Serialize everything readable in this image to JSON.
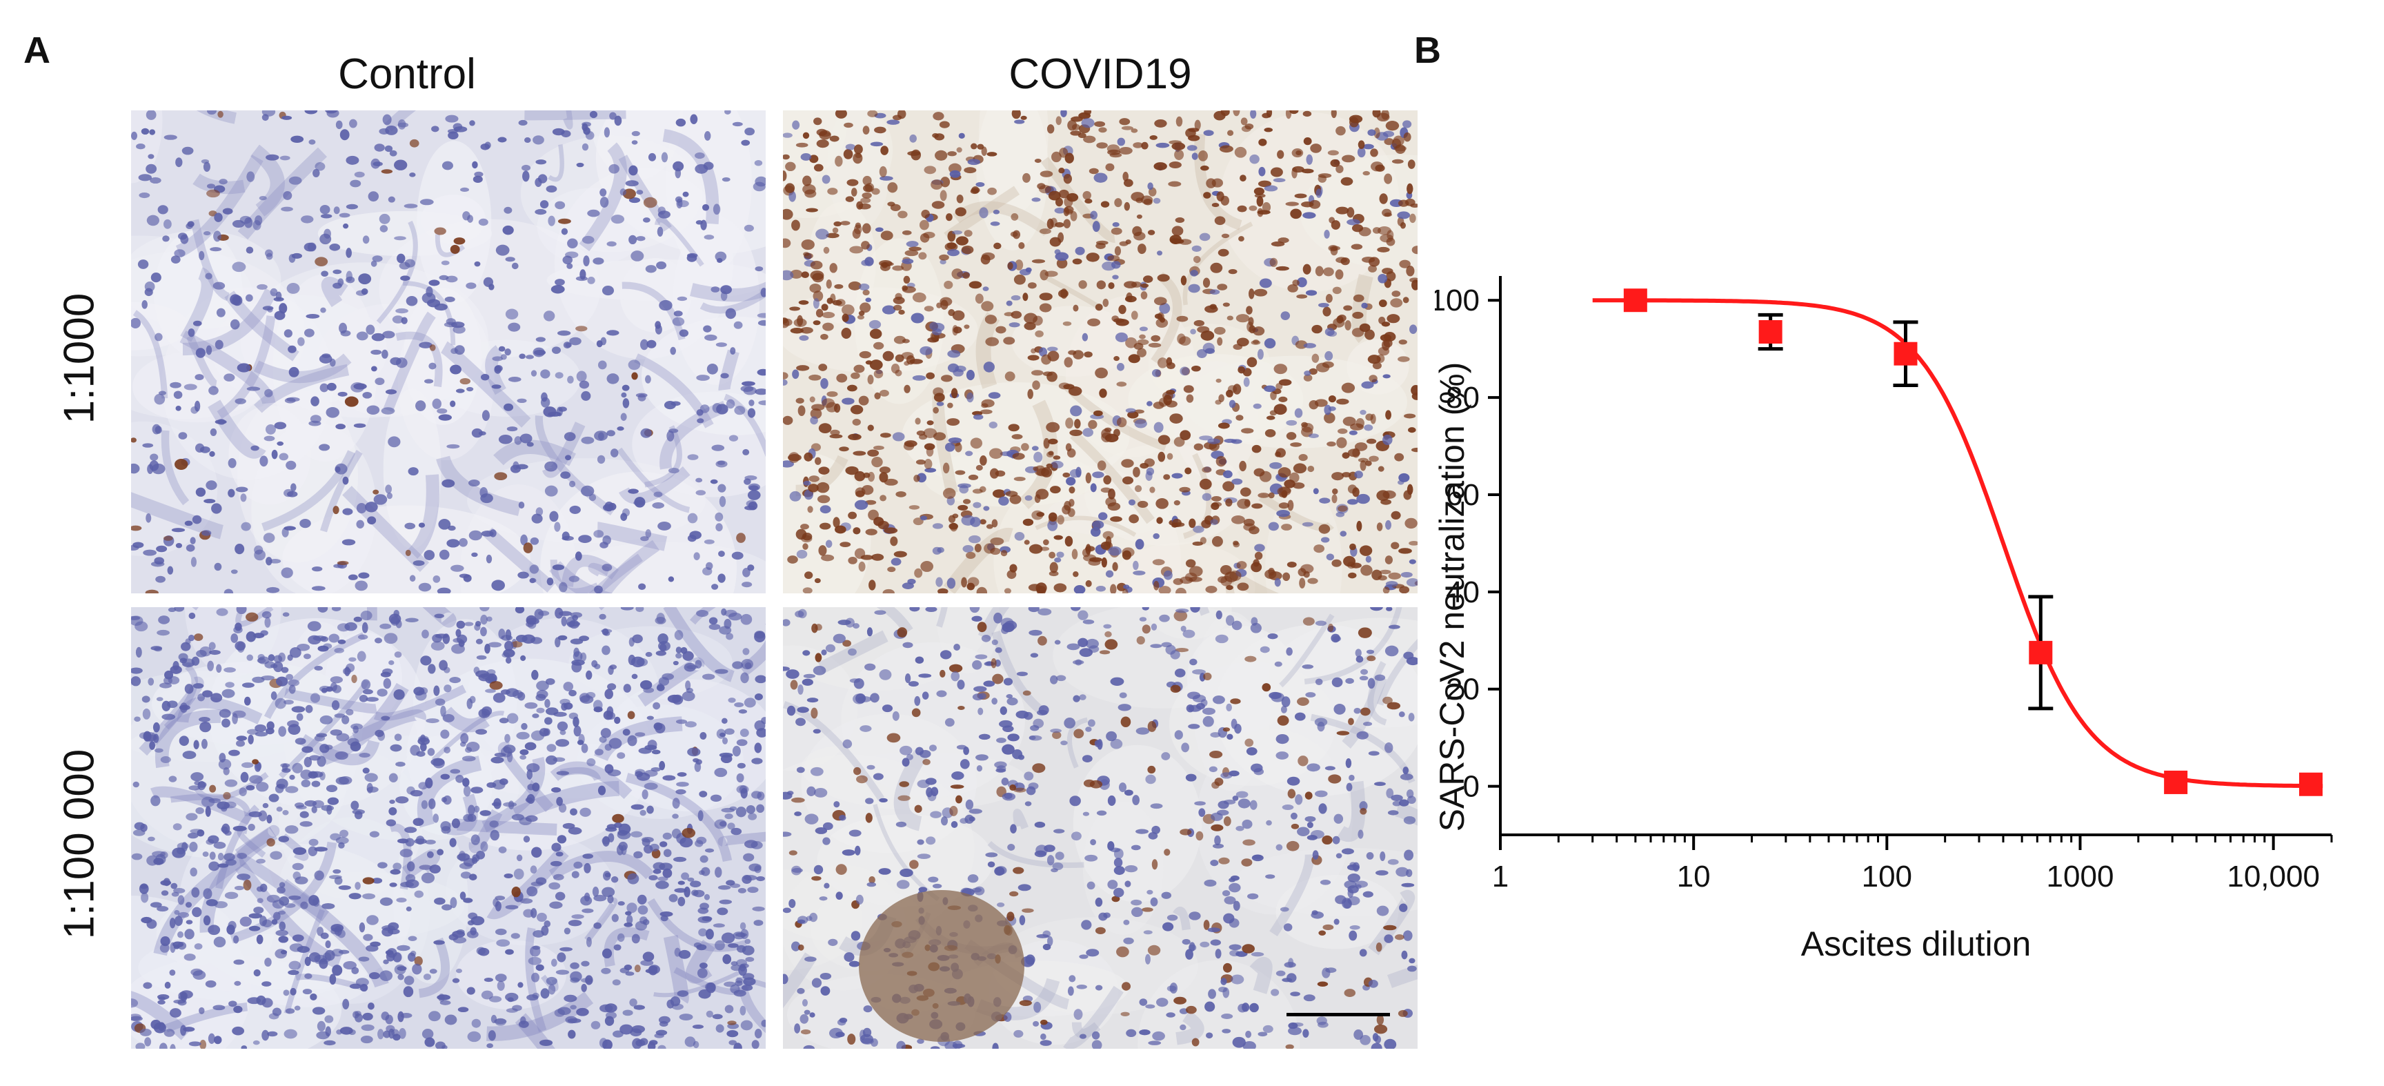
{
  "figure": {
    "panel_a": {
      "letter": "A",
      "columns": [
        "Control",
        "COVID19"
      ],
      "rows": [
        "1:1000",
        "1:100 000"
      ]
    },
    "panel_b": {
      "letter": "B"
    }
  },
  "colors": {
    "tissue_bg": "#e9ebf2",
    "hematoxylin": "#5a5fa8",
    "dab_brown": "#7a3a1c",
    "curve": "#ff1a1a",
    "marker": "#ff1a1a",
    "errorbar": "#000000"
  },
  "chart_data": {
    "type": "scatter",
    "xlabel": "Ascites dilution",
    "ylabel": "SARS-CoV2 neutralization (%)",
    "x_scale": "log",
    "xlim": [
      1,
      20000
    ],
    "ylim": [
      -10,
      105
    ],
    "x_ticks": [
      1,
      10,
      100,
      1000,
      10000
    ],
    "x_tick_labels": [
      "1",
      "10",
      "100",
      "1000",
      "10,000"
    ],
    "y_ticks": [
      0,
      20,
      40,
      60,
      80,
      100
    ],
    "y_tick_labels": [
      "0",
      "20",
      "40",
      "60",
      "80",
      "100"
    ],
    "series": [
      {
        "x": [
          5,
          25,
          125,
          625,
          3125,
          15625
        ],
        "y": [
          100,
          93.5,
          89,
          27.5,
          0.8,
          0.4
        ],
        "err": [
          0,
          3.5,
          6.5,
          11.5,
          0,
          0
        ]
      }
    ],
    "fit": {
      "top": 100,
      "bottom": 0,
      "ec50": 400,
      "hill": 2.0
    }
  }
}
